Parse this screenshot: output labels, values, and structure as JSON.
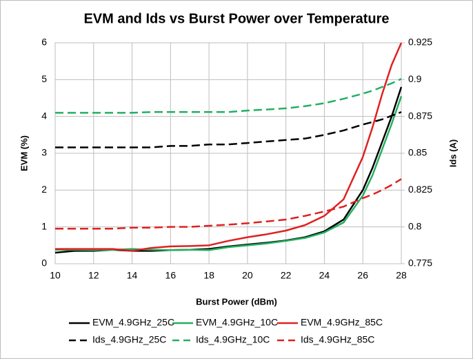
{
  "chart_data": {
    "type": "line",
    "title": "EVM and Ids vs Burst Power over Temperature",
    "x_label": "Burst Power (dBm)",
    "y_label": "EVM (%)",
    "y2_label": "Ids (A)",
    "x": [
      10,
      11,
      12,
      13,
      14,
      15,
      16,
      17,
      18,
      19,
      20,
      21,
      22,
      23,
      24,
      25,
      26,
      26.5,
      27,
      27.5,
      28
    ],
    "xlim": [
      10,
      28
    ],
    "xticks": [
      10,
      12,
      14,
      16,
      18,
      20,
      22,
      24,
      26,
      28
    ],
    "ylim": [
      0,
      6
    ],
    "yticks": [
      0,
      1,
      2,
      3,
      4,
      5,
      6
    ],
    "y2lim": [
      0.775,
      0.925
    ],
    "y2ticks": [
      0.775,
      0.8,
      0.825,
      0.85,
      0.875,
      0.9,
      0.925
    ],
    "grid": true,
    "legend": "bottom",
    "series": [
      {
        "name": "EVM_4.9GHz_25C",
        "color": "#000000",
        "style": "solid",
        "values": [
          0.3,
          0.35,
          0.35,
          0.38,
          0.35,
          0.35,
          0.37,
          0.38,
          0.4,
          0.47,
          0.52,
          0.57,
          0.63,
          0.72,
          0.88,
          1.2,
          2.0,
          2.6,
          3.3,
          4.0,
          4.8
        ]
      },
      {
        "name": "EVM_4.9GHz_10C",
        "color": "#22b060",
        "style": "solid",
        "values": [
          0.38,
          0.38,
          0.37,
          0.38,
          0.4,
          0.38,
          0.37,
          0.38,
          0.37,
          0.45,
          0.5,
          0.55,
          0.62,
          0.7,
          0.85,
          1.12,
          1.85,
          2.4,
          3.1,
          3.8,
          4.55
        ]
      },
      {
        "name": "EVM_4.9GHz_85C",
        "color": "#e02020",
        "style": "solid",
        "values": [
          0.4,
          0.4,
          0.4,
          0.4,
          0.35,
          0.43,
          0.47,
          0.48,
          0.5,
          0.62,
          0.72,
          0.8,
          0.9,
          1.05,
          1.3,
          1.75,
          2.9,
          3.7,
          4.6,
          5.4,
          6.0
        ]
      },
      {
        "name": "Ids_4.9GHz_25C",
        "color": "#000000",
        "style": "dashed",
        "axis": "y2",
        "values": [
          0.854,
          0.854,
          0.854,
          0.854,
          0.854,
          0.854,
          0.855,
          0.855,
          0.856,
          0.856,
          0.857,
          0.858,
          0.859,
          0.86,
          0.8625,
          0.8655,
          0.8695,
          0.8712,
          0.873,
          0.8755,
          0.878
        ]
      },
      {
        "name": "Ids_4.9GHz_10C",
        "color": "#22b060",
        "style": "dashed",
        "axis": "y2",
        "values": [
          0.8775,
          0.8775,
          0.8775,
          0.8775,
          0.8775,
          0.878,
          0.878,
          0.878,
          0.878,
          0.878,
          0.879,
          0.8797,
          0.8805,
          0.882,
          0.884,
          0.887,
          0.8905,
          0.8925,
          0.895,
          0.8975,
          0.9005
        ]
      },
      {
        "name": "Ids_4.9GHz_85C",
        "color": "#e02020",
        "style": "dashed",
        "axis": "y2",
        "values": [
          0.7988,
          0.7988,
          0.7988,
          0.7988,
          0.7995,
          0.7995,
          0.8,
          0.8,
          0.8008,
          0.8015,
          0.8025,
          0.8037,
          0.805,
          0.8075,
          0.8105,
          0.8138,
          0.8195,
          0.822,
          0.825,
          0.8285,
          0.8325
        ]
      }
    ]
  }
}
